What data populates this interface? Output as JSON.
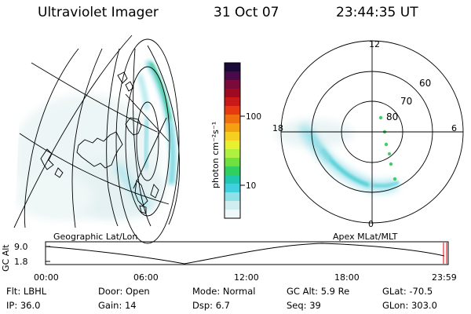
{
  "header": {
    "title": "Ultraviolet Imager",
    "date": "31 Oct 07",
    "time": "23:44:35 UT"
  },
  "colorbar": {
    "unit_label": "photon cm⁻²s⁻¹",
    "tick_100": "100",
    "tick_10": "10",
    "colors_top_to_bottom": [
      "#1a0a3a",
      "#4a0a4a",
      "#7a0a3a",
      "#a00a20",
      "#c81818",
      "#e83a10",
      "#f07010",
      "#f5a010",
      "#f5d020",
      "#e8f030",
      "#b0f040",
      "#70e040",
      "#30d060",
      "#20c8b0",
      "#40d0e0",
      "#90e0e8",
      "#d0eef0",
      "#eef8f8"
    ]
  },
  "polar_plot": {
    "mlt_labels": {
      "top": "12",
      "left": "18",
      "right": "6",
      "bottom": "0"
    },
    "lat_labels": [
      "60",
      "70",
      "80"
    ]
  },
  "map_labels": {
    "left": "Geographic Lat/Lon",
    "right": "Apex MLat/MLT"
  },
  "altitude_plot": {
    "axis_label": "GC Alt",
    "y_ticks": [
      "9.0",
      "1.8"
    ],
    "x_ticks": [
      "00:00",
      "06:00",
      "12:00",
      "18:00",
      "23:59"
    ]
  },
  "info": {
    "rows": [
      [
        {
          "label": "Flt:",
          "value": "LBHL"
        },
        {
          "label": "Door:",
          "value": "Open"
        },
        {
          "label": "Mode:",
          "value": "Normal"
        },
        {
          "label": "GC Alt:",
          "value": "5.9 Re"
        },
        {
          "label": "GLat:",
          "value": "-70.5"
        }
      ],
      [
        {
          "label": "IP:",
          "value": "36.0"
        },
        {
          "label": "Gain:",
          "value": "14"
        },
        {
          "label": "Dsp:",
          "value": "6.7"
        },
        {
          "label": "Seq:",
          "value": "39"
        },
        {
          "label": "GLon:",
          "value": "303.0"
        }
      ]
    ]
  }
}
